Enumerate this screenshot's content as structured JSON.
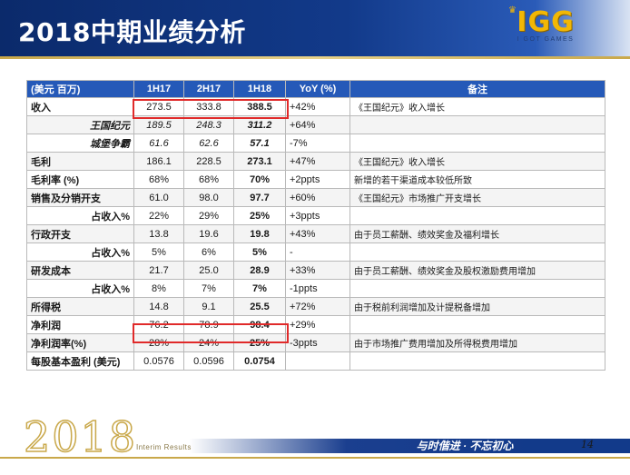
{
  "header": {
    "title": "2018中期业绩分析",
    "logo_main": "IGG",
    "logo_sub": "I GOT GAMES"
  },
  "table": {
    "columns": [
      "(美元 百万)",
      "1H17",
      "2H17",
      "1H18",
      "YoY (%)",
      "备注"
    ],
    "rows": [
      {
        "label": "收入",
        "type": "label",
        "v1": "273.5",
        "v2": "333.8",
        "v3": "388.5",
        "yoy": "+42%",
        "note": "《王国纪元》收入增长"
      },
      {
        "label": "王国纪元",
        "type": "sub",
        "v1": "189.5",
        "v2": "248.3",
        "v3": "311.2",
        "yoy": "+64%",
        "note": ""
      },
      {
        "label": "城堡争霸",
        "type": "sub",
        "v1": "61.6",
        "v2": "62.6",
        "v3": "57.1",
        "yoy": "-7%",
        "note": ""
      },
      {
        "label": "毛利",
        "type": "label",
        "v1": "186.1",
        "v2": "228.5",
        "v3": "273.1",
        "yoy": "+47%",
        "note": "《王国纪元》收入增长"
      },
      {
        "label": "毛利率 (%)",
        "type": "label",
        "v1": "68%",
        "v2": "68%",
        "v3": "70%",
        "yoy": "+2ppts",
        "note": "新增的若干渠道成本较低所致"
      },
      {
        "label": "销售及分销开支",
        "type": "label",
        "v1": "61.0",
        "v2": "98.0",
        "v3": "97.7",
        "yoy": "+60%",
        "note": "《王国纪元》市场推广开支增长"
      },
      {
        "label": "占收入%",
        "type": "ratio",
        "v1": "22%",
        "v2": "29%",
        "v3": "25%",
        "yoy": "+3ppts",
        "note": ""
      },
      {
        "label": "行政开支",
        "type": "label",
        "v1": "13.8",
        "v2": "19.6",
        "v3": "19.8",
        "yoy": "+43%",
        "note": "由于员工薪酬、绩效奖金及福利增长"
      },
      {
        "label": "占收入%",
        "type": "ratio",
        "v1": "5%",
        "v2": "6%",
        "v3": "5%",
        "yoy": "-",
        "note": ""
      },
      {
        "label": "研发成本",
        "type": "label",
        "v1": "21.7",
        "v2": "25.0",
        "v3": "28.9",
        "yoy": "+33%",
        "note": "由于员工薪酬、绩效奖金及股权激励费用增加"
      },
      {
        "label": "占收入%",
        "type": "ratio",
        "v1": "8%",
        "v2": "7%",
        "v3": "7%",
        "yoy": "-1ppts",
        "note": ""
      },
      {
        "label": "所得税",
        "type": "label",
        "v1": "14.8",
        "v2": "9.1",
        "v3": "25.5",
        "yoy": "+72%",
        "note": "由于税前利润增加及计提税备增加"
      },
      {
        "label": "净利润",
        "type": "label",
        "v1": "76.2",
        "v2": "78.9",
        "v3": "98.4",
        "yoy": "+29%",
        "note": ""
      },
      {
        "label": "净利润率(%)",
        "type": "label",
        "v1": "28%",
        "v2": "24%",
        "v3": "25%",
        "yoy": "-3ppts",
        "note": "由于市场推广费用增加及所得税费用增加"
      },
      {
        "label": "每股基本盈利 (美元)",
        "type": "label",
        "v1": "0.0576",
        "v2": "0.0596",
        "v3": "0.0754",
        "yoy": "",
        "note": ""
      }
    ]
  },
  "footer": {
    "year": "2018",
    "interim": "Interim Results",
    "slogan": "与时偕进 · 不忘初心",
    "page": "14"
  },
  "colors": {
    "header_blue": "#123a8a",
    "table_header": "#2559b8",
    "highlight": "#e02a2a",
    "gold": "#c9a84a",
    "logo_gold": "#f2b705"
  }
}
